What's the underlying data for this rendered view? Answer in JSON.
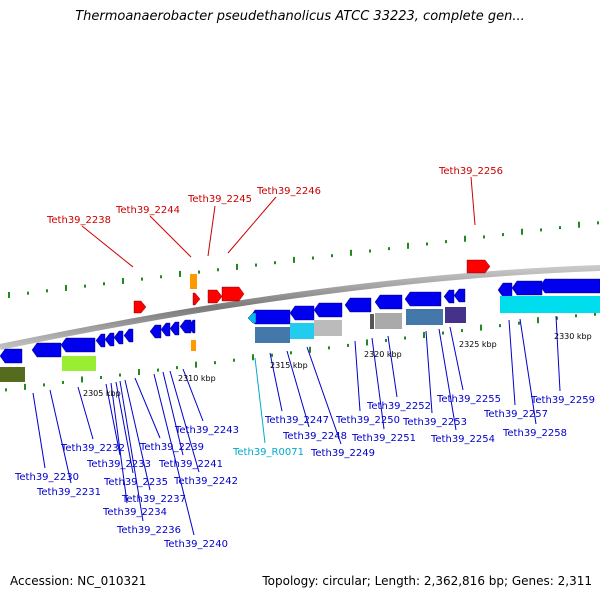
{
  "title": "Thermoanaerobacter pseudethanolicus ATCC 33223, complete gen...",
  "footer": {
    "accession": "Accession: NC_010321",
    "summary": "Topology: circular; Length: 2,362,816 bp; Genes: 2,311"
  },
  "colors": {
    "forward_gene": "#ff0000",
    "reverse_gene": "#0000ee",
    "rna_gene": "#00bbee",
    "forward_label": "#cc0000",
    "reverse_label": "#0000cc",
    "rna_label": "#00aacc",
    "backbone": "#888888",
    "tick": "#228822"
  },
  "scale_labels": [
    "2305 kbp",
    "2310 kbp",
    "2315 kbp",
    "2320 kbp",
    "2325 kbp",
    "2330 kbp"
  ],
  "upper_labels": [
    "Teth39_2238",
    "Teth39_2244",
    "Teth39_2245",
    "Teth39_2246",
    "Teth39_2256"
  ],
  "lower_labels": [
    "Teth39_2230",
    "Teth39_2231",
    "Teth39_2232",
    "Teth39_2233",
    "Teth39_2234",
    "Teth39_2235",
    "Teth39_2236",
    "Teth39_2237",
    "Teth39_2239",
    "Teth39_2240",
    "Teth39_2241",
    "Teth39_2242",
    "Teth39_2243",
    "Teth39_R0071",
    "Teth39_2247",
    "Teth39_2248",
    "Teth39_2249",
    "Teth39_2250",
    "Teth39_2251",
    "Teth39_2252",
    "Teth39_2253",
    "Teth39_2254",
    "Teth39_2255",
    "Teth39_2257",
    "Teth39_2258",
    "Teth39_2259"
  ]
}
